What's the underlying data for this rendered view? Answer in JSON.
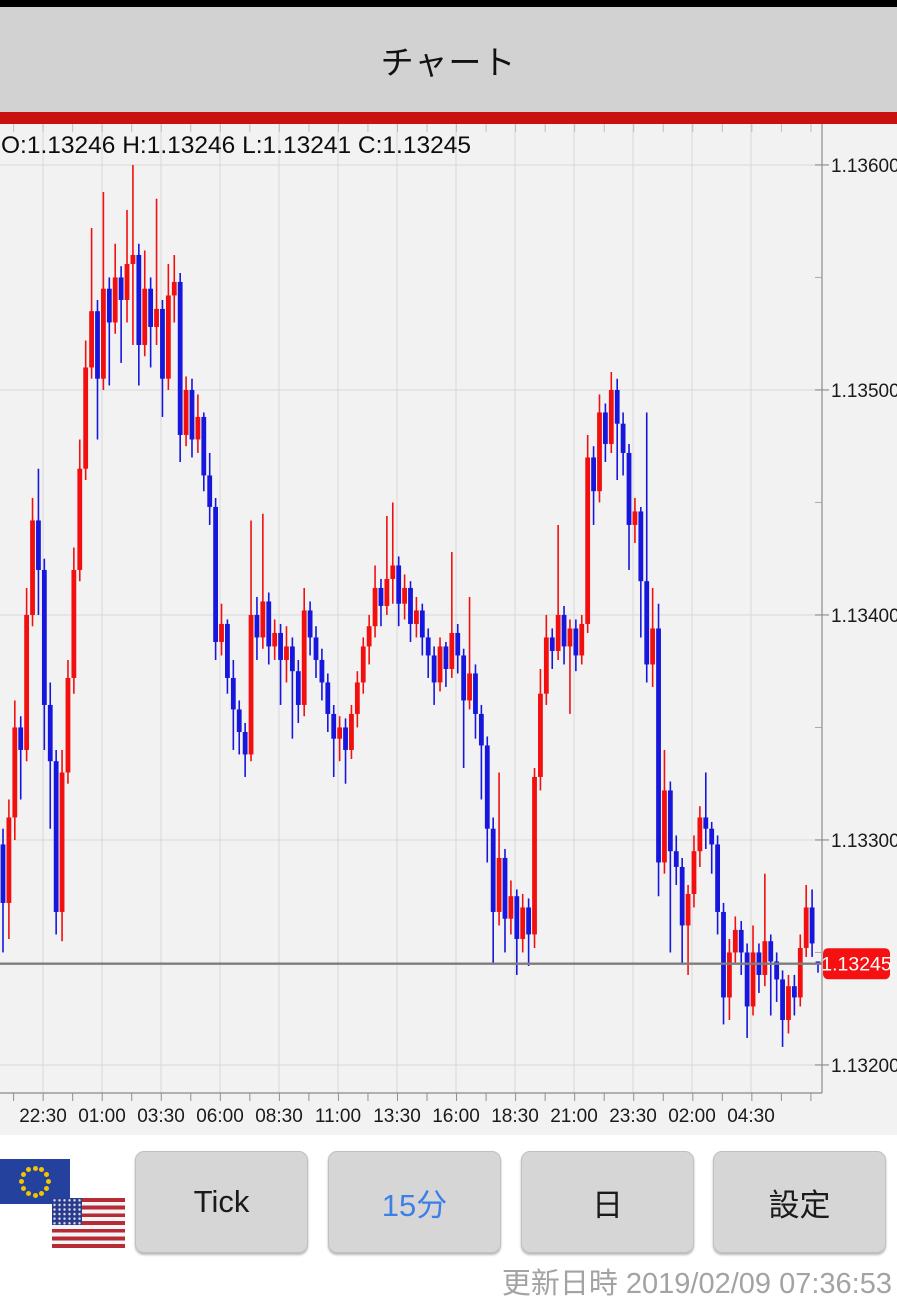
{
  "header": {
    "title": "チャート"
  },
  "chart_data": {
    "type": "candlestick",
    "pair": "EUR/USD",
    "timeframe_selected": "15分",
    "ohlc_header": "O:1.13246 H:1.13246 L:1.13241 C:1.13245",
    "current_price": "1.13245",
    "current_price_value": 1.13245,
    "y_axis_labels": [
      "1.13600",
      "1.13500",
      "1.13400",
      "1.13300",
      "1.13200"
    ],
    "y_axis_values": [
      1.136,
      1.135,
      1.134,
      1.133,
      1.132
    ],
    "y_minor_values": [
      1.1355,
      1.1345,
      1.1335,
      1.1325
    ],
    "x_axis_labels": [
      "22:30",
      "01:00",
      "03:30",
      "06:00",
      "08:30",
      "11:00",
      "13:30",
      "16:00",
      "18:30",
      "21:00",
      "23:30",
      "02:00",
      "04:30"
    ],
    "ylim": [
      1.13188,
      1.13618
    ],
    "grid": true,
    "colors": {
      "up": "#f20f0f",
      "down": "#1616dd",
      "current_line": "#7d7d7d",
      "price_tag_bg": "#f51111",
      "price_tag_text": "#ffffff",
      "grid_line": "#d8d8d8",
      "axis_line": "#9a9a9a",
      "label_text": "#1a1a1a"
    },
    "candles": [
      [
        1.13298,
        1.13305,
        1.1325,
        1.13272
      ],
      [
        1.13272,
        1.13318,
        1.13256,
        1.1331
      ],
      [
        1.1331,
        1.13362,
        1.133,
        1.1335
      ],
      [
        1.1335,
        1.13355,
        1.13318,
        1.1334
      ],
      [
        1.1334,
        1.13412,
        1.13335,
        1.134
      ],
      [
        1.134,
        1.13452,
        1.13395,
        1.13442
      ],
      [
        1.13442,
        1.13465,
        1.134,
        1.1342
      ],
      [
        1.1342,
        1.13425,
        1.1334,
        1.1336
      ],
      [
        1.1336,
        1.1337,
        1.13305,
        1.13335
      ],
      [
        1.13335,
        1.1334,
        1.13258,
        1.13268
      ],
      [
        1.13268,
        1.1334,
        1.13255,
        1.1333
      ],
      [
        1.1333,
        1.1338,
        1.13325,
        1.13372
      ],
      [
        1.13372,
        1.1343,
        1.13365,
        1.1342
      ],
      [
        1.1342,
        1.13478,
        1.13415,
        1.13465
      ],
      [
        1.13465,
        1.13522,
        1.1346,
        1.1351
      ],
      [
        1.1351,
        1.13572,
        1.13505,
        1.13535
      ],
      [
        1.13535,
        1.1354,
        1.13478,
        1.13505
      ],
      [
        1.13505,
        1.13588,
        1.135,
        1.13545
      ],
      [
        1.13545,
        1.1355,
        1.13502,
        1.1353
      ],
      [
        1.1353,
        1.13565,
        1.13525,
        1.1355
      ],
      [
        1.1355,
        1.13555,
        1.13512,
        1.1354
      ],
      [
        1.1354,
        1.1358,
        1.1353,
        1.13556
      ],
      [
        1.13556,
        1.136,
        1.1352,
        1.1356
      ],
      [
        1.1356,
        1.13565,
        1.13502,
        1.1352
      ],
      [
        1.1352,
        1.13562,
        1.13515,
        1.13545
      ],
      [
        1.13545,
        1.1355,
        1.1351,
        1.13528
      ],
      [
        1.13528,
        1.13585,
        1.1352,
        1.13536
      ],
      [
        1.13536,
        1.1354,
        1.13488,
        1.13505
      ],
      [
        1.13505,
        1.13556,
        1.135,
        1.13542
      ],
      [
        1.13542,
        1.1356,
        1.1353,
        1.13548
      ],
      [
        1.13548,
        1.13552,
        1.13468,
        1.1348
      ],
      [
        1.1348,
        1.13506,
        1.13475,
        1.135
      ],
      [
        1.135,
        1.13505,
        1.1347,
        1.13478
      ],
      [
        1.13478,
        1.13498,
        1.13472,
        1.13488
      ],
      [
        1.13488,
        1.1349,
        1.13455,
        1.13462
      ],
      [
        1.13462,
        1.13472,
        1.1344,
        1.13448
      ],
      [
        1.13448,
        1.13452,
        1.1338,
        1.13388
      ],
      [
        1.13388,
        1.13405,
        1.13382,
        1.13396
      ],
      [
        1.13396,
        1.13398,
        1.13365,
        1.13372
      ],
      [
        1.13372,
        1.1338,
        1.1334,
        1.13358
      ],
      [
        1.13358,
        1.13362,
        1.13338,
        1.13348
      ],
      [
        1.13348,
        1.13352,
        1.13328,
        1.13338
      ],
      [
        1.13338,
        1.13442,
        1.13335,
        1.134
      ],
      [
        1.134,
        1.13408,
        1.1338,
        1.1339
      ],
      [
        1.1339,
        1.13445,
        1.13385,
        1.13406
      ],
      [
        1.13406,
        1.1341,
        1.13378,
        1.13386
      ],
      [
        1.13386,
        1.13398,
        1.1338,
        1.13392
      ],
      [
        1.13392,
        1.13396,
        1.1336,
        1.1338
      ],
      [
        1.1338,
        1.13395,
        1.1337,
        1.13386
      ],
      [
        1.13386,
        1.1339,
        1.13345,
        1.13375
      ],
      [
        1.13375,
        1.1338,
        1.13352,
        1.1336
      ],
      [
        1.1336,
        1.13412,
        1.13355,
        1.13402
      ],
      [
        1.13402,
        1.13406,
        1.13382,
        1.1339
      ],
      [
        1.1339,
        1.13395,
        1.13372,
        1.1338
      ],
      [
        1.1338,
        1.13385,
        1.13362,
        1.1337
      ],
      [
        1.1337,
        1.13374,
        1.13348,
        1.13356
      ],
      [
        1.13356,
        1.1336,
        1.13328,
        1.13345
      ],
      [
        1.13345,
        1.13355,
        1.13335,
        1.1335
      ],
      [
        1.1335,
        1.13354,
        1.13325,
        1.1334
      ],
      [
        1.1334,
        1.1336,
        1.13336,
        1.13356
      ],
      [
        1.13356,
        1.13375,
        1.1335,
        1.1337
      ],
      [
        1.1337,
        1.1339,
        1.13365,
        1.13386
      ],
      [
        1.13386,
        1.134,
        1.13378,
        1.13395
      ],
      [
        1.13395,
        1.13422,
        1.1339,
        1.13412
      ],
      [
        1.13412,
        1.13416,
        1.13395,
        1.13404
      ],
      [
        1.13404,
        1.13444,
        1.134,
        1.13416
      ],
      [
        1.13416,
        1.1345,
        1.13405,
        1.13422
      ],
      [
        1.13422,
        1.13426,
        1.13395,
        1.13405
      ],
      [
        1.13405,
        1.13418,
        1.13398,
        1.13412
      ],
      [
        1.13412,
        1.13415,
        1.13388,
        1.13396
      ],
      [
        1.13396,
        1.13408,
        1.1339,
        1.13402
      ],
      [
        1.13402,
        1.13405,
        1.13382,
        1.1339
      ],
      [
        1.1339,
        1.13394,
        1.13372,
        1.13382
      ],
      [
        1.13382,
        1.13386,
        1.1336,
        1.1337
      ],
      [
        1.1337,
        1.1339,
        1.13366,
        1.13386
      ],
      [
        1.13386,
        1.13388,
        1.13368,
        1.13376
      ],
      [
        1.13376,
        1.13428,
        1.13372,
        1.13392
      ],
      [
        1.13392,
        1.13396,
        1.13374,
        1.13382
      ],
      [
        1.13382,
        1.13385,
        1.13332,
        1.13362
      ],
      [
        1.13362,
        1.13408,
        1.13358,
        1.13374
      ],
      [
        1.13374,
        1.13378,
        1.13345,
        1.13356
      ],
      [
        1.13356,
        1.1336,
        1.13318,
        1.13342
      ],
      [
        1.13342,
        1.13346,
        1.1329,
        1.13305
      ],
      [
        1.13305,
        1.1331,
        1.13245,
        1.13268
      ],
      [
        1.13268,
        1.1333,
        1.13262,
        1.13292
      ],
      [
        1.13292,
        1.13296,
        1.1325,
        1.13265
      ],
      [
        1.13265,
        1.13282,
        1.13258,
        1.13275
      ],
      [
        1.13275,
        1.13278,
        1.1324,
        1.13256
      ],
      [
        1.13256,
        1.13276,
        1.1325,
        1.1327
      ],
      [
        1.1327,
        1.13274,
        1.13244,
        1.13258
      ],
      [
        1.13258,
        1.13332,
        1.13252,
        1.13328
      ],
      [
        1.13328,
        1.13376,
        1.13322,
        1.13365
      ],
      [
        1.13365,
        1.134,
        1.1336,
        1.1339
      ],
      [
        1.1339,
        1.13394,
        1.13376,
        1.13384
      ],
      [
        1.13384,
        1.1344,
        1.1338,
        1.134
      ],
      [
        1.134,
        1.13404,
        1.13378,
        1.13386
      ],
      [
        1.13386,
        1.13398,
        1.13356,
        1.13394
      ],
      [
        1.13394,
        1.13398,
        1.13375,
        1.13382
      ],
      [
        1.13382,
        1.134,
        1.13378,
        1.13396
      ],
      [
        1.13396,
        1.1348,
        1.13392,
        1.1347
      ],
      [
        1.1347,
        1.13475,
        1.1344,
        1.13455
      ],
      [
        1.13455,
        1.13498,
        1.1345,
        1.1349
      ],
      [
        1.1349,
        1.13494,
        1.13468,
        1.13476
      ],
      [
        1.13476,
        1.13508,
        1.13472,
        1.135
      ],
      [
        1.135,
        1.13505,
        1.1346,
        1.13485
      ],
      [
        1.13485,
        1.1349,
        1.13462,
        1.13472
      ],
      [
        1.13472,
        1.13476,
        1.1342,
        1.1344
      ],
      [
        1.1344,
        1.13452,
        1.13432,
        1.13446
      ],
      [
        1.13446,
        1.13448,
        1.1339,
        1.13415
      ],
      [
        1.13415,
        1.1349,
        1.1337,
        1.13378
      ],
      [
        1.13378,
        1.13412,
        1.13368,
        1.13394
      ],
      [
        1.13394,
        1.13405,
        1.13275,
        1.1329
      ],
      [
        1.1329,
        1.1334,
        1.13285,
        1.13322
      ],
      [
        1.13322,
        1.13326,
        1.1325,
        1.13295
      ],
      [
        1.13295,
        1.13302,
        1.1328,
        1.13288
      ],
      [
        1.13288,
        1.13292,
        1.13245,
        1.13262
      ],
      [
        1.13262,
        1.1328,
        1.1324,
        1.13276
      ],
      [
        1.13276,
        1.13302,
        1.1327,
        1.13295
      ],
      [
        1.13295,
        1.13315,
        1.13288,
        1.1331
      ],
      [
        1.1331,
        1.1333,
        1.13296,
        1.13305
      ],
      [
        1.13305,
        1.13308,
        1.13285,
        1.13298
      ],
      [
        1.13298,
        1.13302,
        1.13258,
        1.13268
      ],
      [
        1.13268,
        1.13272,
        1.13218,
        1.1323
      ],
      [
        1.1323,
        1.13256,
        1.1322,
        1.1325
      ],
      [
        1.1325,
        1.13266,
        1.13245,
        1.1326
      ],
      [
        1.1326,
        1.13264,
        1.1324,
        1.1325
      ],
      [
        1.1325,
        1.13254,
        1.13212,
        1.13226
      ],
      [
        1.13226,
        1.13262,
        1.13222,
        1.1325
      ],
      [
        1.1325,
        1.13254,
        1.13232,
        1.1324
      ],
      [
        1.1324,
        1.13285,
        1.13235,
        1.13255
      ],
      [
        1.13255,
        1.13258,
        1.13222,
        1.13246
      ],
      [
        1.13246,
        1.1325,
        1.13228,
        1.13238
      ],
      [
        1.13238,
        1.13242,
        1.13208,
        1.1322
      ],
      [
        1.1322,
        1.1324,
        1.13214,
        1.13235
      ],
      [
        1.13235,
        1.1324,
        1.13222,
        1.1323
      ],
      [
        1.1323,
        1.13258,
        1.13226,
        1.13252
      ],
      [
        1.13252,
        1.1328,
        1.13248,
        1.1327
      ],
      [
        1.1327,
        1.13278,
        1.13248,
        1.13254
      ],
      [
        1.13246,
        1.13246,
        1.13241,
        1.13245
      ]
    ]
  },
  "toolbar": {
    "buttons": [
      {
        "label": "Tick",
        "selected": false
      },
      {
        "label": "15分",
        "selected": true
      },
      {
        "label": "日",
        "selected": false
      },
      {
        "label": "設定",
        "selected": false
      }
    ]
  },
  "footer": {
    "update_label": "更新日時",
    "update_time": "2019/02/09 07:36:53"
  },
  "flags": {
    "left": "EU",
    "right": "US"
  }
}
